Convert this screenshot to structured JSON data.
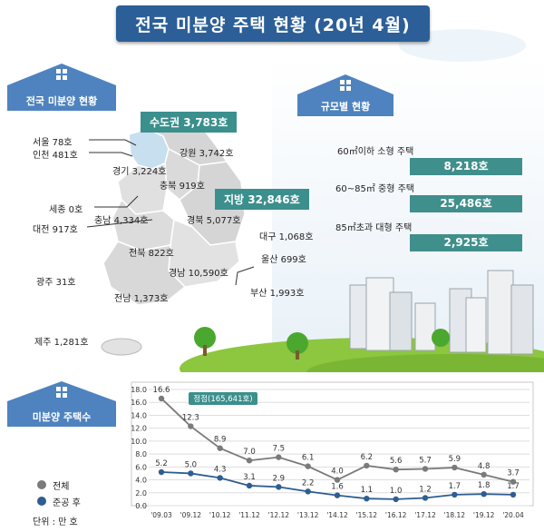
{
  "title": "전국 미분양 주택 현황 (20년 4월)",
  "sections": {
    "regional": "전국 미분양 현황",
    "by_size": "규모별 현황",
    "trend": "미분양 주택수"
  },
  "regions": {
    "capital_area": "수도권 3,783호",
    "provincial": "지방 32,846호",
    "seoul": "서울  78호",
    "incheon": "인천 481호",
    "gyeonggi": "경기 3,224호",
    "gangwon": "강원 3,742호",
    "chungbuk": "충북 919호",
    "sejong": "세종 0호",
    "chungnam": "충남 4,334호",
    "daejeon": "대전 917호",
    "gyeongbuk": "경북 5,077호",
    "daegu": "대구 1,068호",
    "jeonbuk": "전북 822호",
    "ulsan": "울산 699호",
    "gyeongnam": "경남 10,590호",
    "gwangju": "광주 31호",
    "jeonnam": "전남 1,373호",
    "busan": "부산 1,993호",
    "jeju": "제주 1,281호"
  },
  "sizes": [
    {
      "label": "60㎡이하 소형 주택",
      "value": "8,218호"
    },
    {
      "label": "60~85㎡ 중형 주택",
      "value": "25,486호"
    },
    {
      "label": "85㎡초과 대형 주택",
      "value": "2,925호"
    }
  ],
  "legend": {
    "total": "전체",
    "completed": "준공 후",
    "unit": "단위 : 만 호"
  },
  "colors": {
    "banner": "#2c5f97",
    "house": "#4e83bf",
    "teal": "#3b8f8d",
    "total_series": "#7a7a7a",
    "completed_series": "#2d5d92",
    "map_capital": "#c8dff0",
    "map_land": "#dcdcdc"
  },
  "chart_data": {
    "type": "line",
    "x": [
      "'09.03",
      "'09.12",
      "'10.12",
      "'11.12",
      "'12.12",
      "'13.12",
      "'14.12",
      "'15.12",
      "'16.12",
      "'17.12",
      "'18.12",
      "'19.12",
      "'20.04"
    ],
    "series": [
      {
        "name": "전체",
        "values": [
          16.6,
          12.3,
          8.9,
          7.0,
          7.5,
          6.1,
          4.0,
          6.2,
          5.6,
          5.7,
          5.9,
          4.8,
          3.7
        ]
      },
      {
        "name": "준공 후",
        "values": [
          5.2,
          5.0,
          4.3,
          3.1,
          2.9,
          2.2,
          1.6,
          1.1,
          1.0,
          1.2,
          1.7,
          1.8,
          1.7
        ]
      }
    ],
    "value_labels_total": [
      "16.6",
      "12.3",
      "8.9",
      "7.0",
      "7.5",
      "6.1",
      "4.0",
      "6.2",
      "5.6",
      "5.7",
      "5.9",
      "4.8",
      "3.7"
    ],
    "value_labels_completed": [
      "5.2",
      "5.0",
      "4.3",
      "3.1",
      "2.9",
      "2.2",
      "1.6",
      "1.1",
      "1.0",
      "1.2",
      "1.7",
      "1.8",
      "1.7"
    ],
    "yticks": [
      "0.0",
      "2.0",
      "4.0",
      "6.0",
      "8.0",
      "10.0",
      "12.0",
      "14.0",
      "16.0",
      "18.0"
    ],
    "ylim": [
      0,
      18
    ],
    "annotation": "정점(165,641호)",
    "grid": true
  }
}
